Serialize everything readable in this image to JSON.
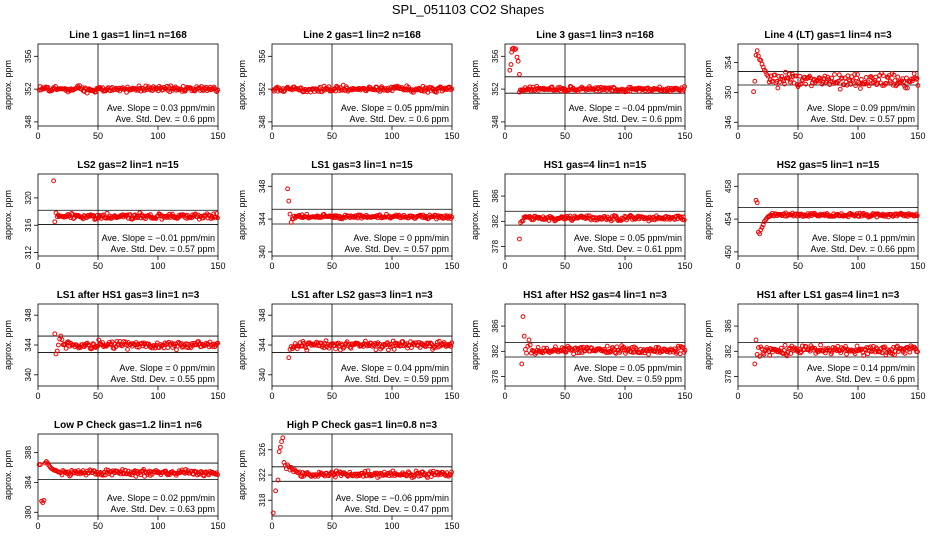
{
  "page": {
    "title": "SPL_051103  CO2 Shapes"
  },
  "chart_data": [
    {
      "type": "scatter",
      "title": "Line 1 gas=1 lin=1 n=168",
      "ylabel": "approx. ppm",
      "xlim": [
        0,
        150
      ],
      "ylim": [
        347.5,
        357.5
      ],
      "xticks": [
        0,
        50,
        100,
        150
      ],
      "yticks": [
        348,
        352,
        356
      ],
      "hlines": [
        352
      ],
      "vline": 50,
      "annotations": [
        "Ave. Slope =  0.03  ppm/min",
        "Ave. Std. Dev. =  0.6  ppm"
      ],
      "series": {
        "level": 352,
        "noise": 0.18,
        "start": 1,
        "end": 150,
        "early": []
      }
    },
    {
      "type": "scatter",
      "title": "Line 2 gas=1 lin=2 n=168",
      "ylabel": "approx. ppm",
      "xlim": [
        0,
        150
      ],
      "ylim": [
        347.5,
        357.5
      ],
      "xticks": [
        0,
        50,
        100,
        150
      ],
      "yticks": [
        348,
        352,
        356
      ],
      "hlines": [
        352
      ],
      "vline": 50,
      "annotations": [
        "Ave. Slope =  0.05  ppm/min",
        "Ave. Std. Dev. =  0.6  ppm"
      ],
      "series": {
        "level": 352,
        "noise": 0.18,
        "start": 1,
        "end": 150,
        "early": []
      }
    },
    {
      "type": "scatter",
      "title": "Line 3 gas=1 lin=3 n=168",
      "ylabel": "approx. ppm",
      "xlim": [
        0,
        150
      ],
      "ylim": [
        347.5,
        357.5
      ],
      "xticks": [
        0,
        50,
        100,
        150
      ],
      "yticks": [
        348,
        352,
        356
      ],
      "hlines": [
        351.5,
        353.5
      ],
      "vline": 50,
      "annotations": [
        "Ave. Slope =  −0.04  ppm/min",
        "Ave. Std. Dev. =  0.6  ppm"
      ],
      "series": {
        "level": 352,
        "noise": 0.15,
        "start": 12,
        "end": 150,
        "early": [
          [
            4,
            354.3
          ],
          [
            5,
            355.0
          ],
          [
            5.5,
            356.5
          ],
          [
            6,
            356.9
          ],
          [
            7,
            357.0
          ],
          [
            8,
            356.8
          ],
          [
            9,
            356.9
          ],
          [
            10,
            355.9
          ],
          [
            11,
            355.4
          ],
          [
            12,
            353.8
          ]
        ]
      }
    },
    {
      "type": "scatter",
      "title": "Line 4 (LT) gas=1 lin=4 n=3",
      "ylabel": "approx. ppm",
      "xlim": [
        0,
        150
      ],
      "ylim": [
        345.5,
        356.5
      ],
      "xticks": [
        0,
        50,
        100,
        150
      ],
      "yticks": [
        346,
        350,
        354
      ],
      "hlines": [
        351,
        352.8
      ],
      "vline": 50,
      "annotations": [
        "Ave. Slope =  0.09  ppm/min",
        "Ave. Std. Dev. =  0.57  ppm"
      ],
      "series": {
        "level": 351.6,
        "noise": 0.5,
        "start": 26,
        "end": 150,
        "early": [
          [
            13,
            350.1
          ],
          [
            14,
            351.5
          ],
          [
            15,
            355.0
          ],
          [
            16,
            355.6
          ],
          [
            17,
            354.9
          ],
          [
            18,
            354.4
          ],
          [
            19,
            354.3
          ],
          [
            20,
            353.8
          ],
          [
            21,
            353.4
          ],
          [
            22,
            353.0
          ],
          [
            23,
            352.8
          ],
          [
            24,
            352.4
          ],
          [
            25,
            352.2
          ]
        ]
      }
    },
    {
      "type": "scatter",
      "title": "LS2 gas=2 lin=1 n=15",
      "ylabel": "approx. ppm",
      "xlim": [
        0,
        150
      ],
      "ylim": [
        311.5,
        323.5
      ],
      "xticks": [
        0,
        50,
        100,
        150
      ],
      "yticks": [
        312,
        316,
        320
      ],
      "hlines": [
        316.1,
        318.2
      ],
      "vline": 50,
      "annotations": [
        "Ave. Slope =  −0.01  ppm/min",
        "Ave. Std. Dev. =  0.57  ppm"
      ],
      "series": {
        "level": 317.3,
        "noise": 0.2,
        "start": 16,
        "end": 150,
        "early": [
          [
            13,
            322.5
          ],
          [
            14,
            316.5
          ],
          [
            15,
            317.8
          ]
        ]
      }
    },
    {
      "type": "scatter",
      "title": "LS1 gas=3 lin=1 n=15",
      "ylabel": "approx. ppm",
      "xlim": [
        0,
        150
      ],
      "ylim": [
        339.5,
        349.5
      ],
      "xticks": [
        0,
        50,
        100,
        150
      ],
      "yticks": [
        340,
        344,
        348
      ],
      "hlines": [
        343.4,
        345.2
      ],
      "vline": 50,
      "annotations": [
        "Ave. Slope =  0  ppm/min",
        "Ave. Std. Dev. =  0.57  ppm"
      ],
      "series": {
        "level": 344.3,
        "noise": 0.12,
        "start": 17,
        "end": 150,
        "early": [
          [
            13,
            347.7
          ],
          [
            14,
            346.2
          ],
          [
            15,
            344.6
          ],
          [
            16,
            343.6
          ]
        ]
      }
    },
    {
      "type": "scatter",
      "title": "HS1 gas=4 lin=1 n=15",
      "ylabel": "approx. ppm",
      "xlim": [
        0,
        150
      ],
      "ylim": [
        376.5,
        389.5
      ],
      "xticks": [
        0,
        50,
        100,
        150
      ],
      "yticks": [
        378,
        382,
        386
      ],
      "hlines": [
        381.4,
        383.6
      ],
      "vline": 50,
      "annotations": [
        "Ave. Slope =  0.05  ppm/min",
        "Ave. Std. Dev. =  0.61  ppm"
      ],
      "series": {
        "level": 382.5,
        "noise": 0.2,
        "start": 15,
        "end": 150,
        "early": [
          [
            12,
            379.2
          ],
          [
            13,
            381.8
          ],
          [
            14,
            382.0
          ]
        ]
      }
    },
    {
      "type": "scatter",
      "title": "HS2 gas=5 lin=1 n=15",
      "ylabel": "approx. ppm",
      "xlim": [
        0,
        150
      ],
      "ylim": [
        449.5,
        459.5
      ],
      "xticks": [
        0,
        50,
        100,
        150
      ],
      "yticks": [
        450,
        454,
        458
      ],
      "hlines": [
        453.6,
        455.4
      ],
      "vline": 50,
      "annotations": [
        "Ave. Slope =  0.1  ppm/min",
        "Ave. Std. Dev. =  0.66  ppm"
      ],
      "series": {
        "level": 454.5,
        "noise": 0.12,
        "start": 27,
        "end": 150,
        "early": [
          [
            15,
            456.3
          ],
          [
            16,
            456.0
          ],
          [
            17,
            452.4
          ],
          [
            18,
            452.2
          ],
          [
            19,
            452.7
          ],
          [
            20,
            453.0
          ],
          [
            21,
            453.3
          ],
          [
            22,
            453.7
          ],
          [
            23,
            453.9
          ],
          [
            24,
            454.1
          ],
          [
            25,
            454.3
          ],
          [
            26,
            454.3
          ]
        ]
      }
    },
    {
      "type": "scatter",
      "title": "LS1 after HS1 gas=3 lin=1 n=3",
      "ylabel": "approx. ppm",
      "xlim": [
        0,
        150
      ],
      "ylim": [
        338.5,
        349.5
      ],
      "xticks": [
        0,
        50,
        100,
        150
      ],
      "yticks": [
        340,
        344,
        348
      ],
      "hlines": [
        343,
        345.2
      ],
      "vline": 50,
      "annotations": [
        "Ave. Slope =  0  ppm/min",
        "Ave. Std. Dev. =  0.55  ppm"
      ],
      "series": {
        "level": 344,
        "noise": 0.25,
        "start": 21,
        "end": 150,
        "early": [
          [
            14,
            345.5
          ],
          [
            15,
            342.8
          ],
          [
            16,
            343.2
          ],
          [
            17,
            344.0
          ],
          [
            18,
            344.8
          ],
          [
            19,
            345.2
          ],
          [
            20,
            344.7
          ]
        ]
      }
    },
    {
      "type": "scatter",
      "title": "LS1 after LS2 gas=3 lin=1 n=3",
      "ylabel": "approx. ppm",
      "xlim": [
        0,
        150
      ],
      "ylim": [
        338.5,
        349.5
      ],
      "xticks": [
        0,
        50,
        100,
        150
      ],
      "yticks": [
        340,
        344,
        348
      ],
      "hlines": [
        343,
        345.2
      ],
      "vline": 50,
      "annotations": [
        "Ave. Slope =  0.04  ppm/min",
        "Ave. Std. Dev. =  0.59  ppm"
      ],
      "series": {
        "level": 344,
        "noise": 0.28,
        "start": 17,
        "end": 150,
        "early": [
          [
            14,
            342.3
          ],
          [
            15,
            343.4
          ],
          [
            16,
            343.8
          ]
        ]
      }
    },
    {
      "type": "scatter",
      "title": "HS1 after HS2 gas=4 lin=1 n=3",
      "ylabel": "approx. ppm",
      "xlim": [
        0,
        150
      ],
      "ylim": [
        376.5,
        389.5
      ],
      "xticks": [
        0,
        50,
        100,
        150
      ],
      "yticks": [
        378,
        382,
        386
      ],
      "hlines": [
        381.1,
        383.4
      ],
      "vline": 50,
      "annotations": [
        "Ave. Slope =  0.05  ppm/min",
        "Ave. Std. Dev. =  0.59  ppm"
      ],
      "series": {
        "level": 382.2,
        "noise": 0.3,
        "start": 22,
        "end": 150,
        "early": [
          [
            14,
            380.0
          ],
          [
            15,
            387.5
          ],
          [
            16,
            384.4
          ],
          [
            17,
            382.3
          ],
          [
            18,
            381.7
          ],
          [
            19,
            382.8
          ],
          [
            20,
            383.8
          ],
          [
            21,
            383.0
          ]
        ]
      }
    },
    {
      "type": "scatter",
      "title": "HS1 after LS1 gas=4 lin=1 n=3",
      "ylabel": "approx. ppm",
      "xlim": [
        0,
        150
      ],
      "ylim": [
        376.5,
        389.5
      ],
      "xticks": [
        0,
        50,
        100,
        150
      ],
      "yticks": [
        378,
        382,
        386
      ],
      "hlines": [
        381.1,
        383.4
      ],
      "vline": 50,
      "annotations": [
        "Ave. Slope =  0.14  ppm/min",
        "Ave. Std. Dev. =  0.6  ppm"
      ],
      "series": {
        "level": 382.2,
        "noise": 0.35,
        "start": 20,
        "end": 150,
        "early": [
          [
            14,
            380.0
          ],
          [
            15,
            383.8
          ],
          [
            16,
            381.5
          ],
          [
            17,
            382.6
          ],
          [
            18,
            381.2
          ],
          [
            19,
            382.7
          ]
        ]
      }
    },
    {
      "type": "scatter",
      "title": "Low P Check gas=1.2 lin=1 n=6",
      "ylabel": "approx. ppm",
      "xlim": [
        0,
        150
      ],
      "ylim": [
        379.5,
        390.5
      ],
      "xticks": [
        0,
        50,
        100,
        150
      ],
      "yticks": [
        380,
        384,
        388
      ],
      "hlines": [
        384.4,
        386.6
      ],
      "vline": 50,
      "annotations": [
        "Ave. Slope =  0.02  ppm/min",
        "Ave. Std. Dev. =  0.63  ppm"
      ],
      "series": {
        "level": 385.3,
        "noise": 0.2,
        "start": 20,
        "end": 150,
        "early": [
          [
            1,
            386.4
          ],
          [
            2,
            386.4
          ],
          [
            3,
            381.5
          ],
          [
            4,
            381.3
          ],
          [
            5,
            381.6
          ],
          [
            6,
            386.6
          ],
          [
            7,
            386.8
          ],
          [
            8,
            386.6
          ],
          [
            9,
            386.3
          ],
          [
            10,
            386.1
          ],
          [
            11,
            385.9
          ],
          [
            12,
            385.8
          ],
          [
            13,
            385.7
          ],
          [
            14,
            385.6
          ],
          [
            15,
            385.6
          ],
          [
            16,
            385.5
          ],
          [
            17,
            385.4
          ],
          [
            18,
            385.4
          ],
          [
            19,
            385.3
          ]
        ]
      }
    },
    {
      "type": "scatter",
      "title": "High P Check gas=1 lin=0.8 n=3",
      "ylabel": "approx. ppm",
      "xlim": [
        0,
        150
      ],
      "ylim": [
        315.5,
        328.5
      ],
      "xticks": [
        0,
        50,
        100,
        150
      ],
      "yticks": [
        318,
        322,
        326
      ],
      "hlines": [
        321,
        323.3
      ],
      "vline": 50,
      "annotations": [
        "Ave. Slope =  −0.06  ppm/min",
        "Ave. Std. Dev. =  0.47  ppm"
      ],
      "series": {
        "level": 322.1,
        "noise": 0.22,
        "start": 24,
        "end": 150,
        "early": [
          [
            1,
            316.0
          ],
          [
            3,
            319.5
          ],
          [
            5,
            321.2
          ],
          [
            6,
            325.7
          ],
          [
            7,
            326.4
          ],
          [
            8,
            327.3
          ],
          [
            9,
            327.9
          ],
          [
            10,
            324.0
          ],
          [
            11,
            323.5
          ],
          [
            12,
            323.0
          ],
          [
            13,
            323.6
          ],
          [
            14,
            323.3
          ],
          [
            15,
            322.8
          ],
          [
            16,
            323.2
          ],
          [
            17,
            322.9
          ],
          [
            18,
            322.5
          ],
          [
            19,
            322.8
          ],
          [
            20,
            322.6
          ],
          [
            21,
            322.4
          ],
          [
            22,
            322.3
          ],
          [
            23,
            322.5
          ]
        ]
      }
    }
  ]
}
